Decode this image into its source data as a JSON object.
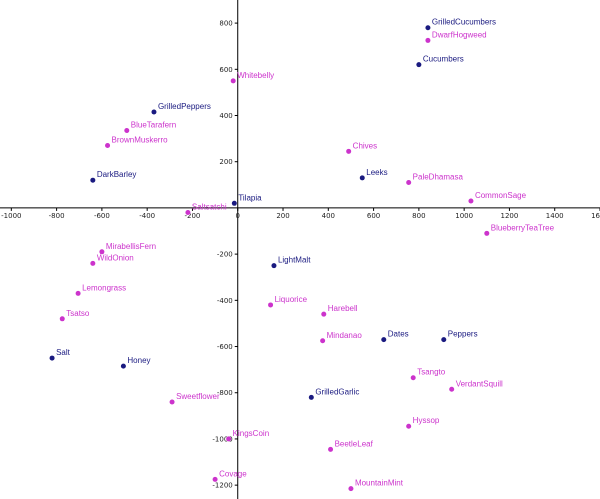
{
  "chart_data": {
    "type": "scatter",
    "title": "",
    "xlabel": "",
    "ylabel": "",
    "xlim": [
      -1050,
      1600
    ],
    "ylim": [
      -1260,
      900
    ],
    "grid": false,
    "x_ticks": [
      "-1000",
      "-800",
      "-600",
      "-400",
      "-200",
      "0",
      "200",
      "400",
      "600",
      "800",
      "1000",
      "1200",
      "1400",
      "1600"
    ],
    "x_tick_values": [
      -1000,
      -800,
      -600,
      -400,
      -200,
      0,
      200,
      400,
      600,
      800,
      1000,
      1200,
      1400,
      1600
    ],
    "y_ticks": [
      "800",
      "600",
      "400",
      "200",
      "-200",
      "-400",
      "-600",
      "-800",
      "-1000",
      "-1200"
    ],
    "y_tick_values": [
      800,
      600,
      400,
      200,
      -200,
      -400,
      -600,
      -800,
      -1000,
      -1200
    ],
    "colors": {
      "navy": "#1a1a80",
      "magenta": "#cc33cc",
      "axis": "#000000"
    },
    "points": [
      {
        "label": "GrilledCucumbers",
        "x": 840,
        "y": 780,
        "color": "navy"
      },
      {
        "label": "DwarfHogweed",
        "x": 840,
        "y": 725,
        "color": "magenta"
      },
      {
        "label": "Cucumbers",
        "x": 800,
        "y": 620,
        "color": "navy"
      },
      {
        "label": "Whitebelly",
        "x": -20,
        "y": 550,
        "color": "magenta"
      },
      {
        "label": "GrilledPeppers",
        "x": -370,
        "y": 415,
        "color": "navy"
      },
      {
        "label": "BlueTarafern",
        "x": -490,
        "y": 335,
        "color": "magenta"
      },
      {
        "label": "BrownMuskerro",
        "x": -575,
        "y": 270,
        "color": "magenta"
      },
      {
        "label": "Chives",
        "x": 490,
        "y": 245,
        "color": "magenta"
      },
      {
        "label": "Leeks",
        "x": 550,
        "y": 130,
        "color": "navy"
      },
      {
        "label": "PaleDhamasa",
        "x": 755,
        "y": 110,
        "color": "magenta"
      },
      {
        "label": "CommonSage",
        "x": 1030,
        "y": 30,
        "color": "magenta"
      },
      {
        "label": "DarkBarley",
        "x": -640,
        "y": 120,
        "color": "navy"
      },
      {
        "label": "Tilapia",
        "x": -15,
        "y": 20,
        "color": "navy"
      },
      {
        "label": "Saltsatchi",
        "x": -220,
        "y": -20,
        "color": "magenta"
      },
      {
        "label": "BlueberryTeaTree",
        "x": 1100,
        "y": -110,
        "color": "magenta"
      },
      {
        "label": "MirabellisFern",
        "x": -600,
        "y": -190,
        "color": "magenta"
      },
      {
        "label": "WildOnion",
        "x": -640,
        "y": -240,
        "color": "magenta"
      },
      {
        "label": "LightMalt",
        "x": 160,
        "y": -250,
        "color": "navy"
      },
      {
        "label": "Lemongrass",
        "x": -705,
        "y": -370,
        "color": "magenta"
      },
      {
        "label": "Liquorice",
        "x": 145,
        "y": -420,
        "color": "magenta"
      },
      {
        "label": "Harebell",
        "x": 380,
        "y": -460,
        "color": "magenta"
      },
      {
        "label": "Tsatso",
        "x": -775,
        "y": -480,
        "color": "magenta"
      },
      {
        "label": "Mindanao",
        "x": 375,
        "y": -575,
        "color": "magenta"
      },
      {
        "label": "Dates",
        "x": 645,
        "y": -570,
        "color": "navy"
      },
      {
        "label": "Peppers",
        "x": 910,
        "y": -570,
        "color": "navy"
      },
      {
        "label": "Salt",
        "x": -820,
        "y": -650,
        "color": "navy"
      },
      {
        "label": "Honey",
        "x": -505,
        "y": -685,
        "color": "navy"
      },
      {
        "label": "Tsangto",
        "x": 775,
        "y": -735,
        "color": "magenta"
      },
      {
        "label": "VerdantSquill",
        "x": 945,
        "y": -785,
        "color": "magenta"
      },
      {
        "label": "Sweetflower",
        "x": -290,
        "y": -840,
        "color": "magenta"
      },
      {
        "label": "GrilledGarlic",
        "x": 325,
        "y": -820,
        "color": "navy"
      },
      {
        "label": "Hyssop",
        "x": 755,
        "y": -945,
        "color": "magenta"
      },
      {
        "label": "KingsCoin",
        "x": -40,
        "y": -1000,
        "color": "magenta"
      },
      {
        "label": "BeetleLeaf",
        "x": 410,
        "y": -1045,
        "color": "magenta"
      },
      {
        "label": "Covage",
        "x": -100,
        "y": -1175,
        "color": "magenta"
      },
      {
        "label": "MountainMint",
        "x": 500,
        "y": -1215,
        "color": "magenta"
      }
    ]
  }
}
